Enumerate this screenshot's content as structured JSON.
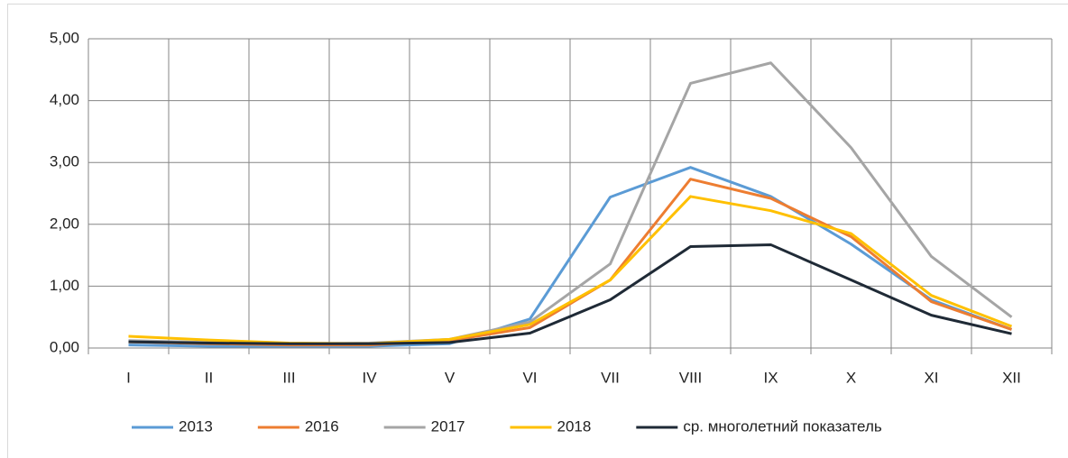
{
  "chart_data": {
    "type": "line",
    "categories": [
      "I",
      "II",
      "III",
      "IV",
      "V",
      "VI",
      "VII",
      "VIII",
      "IX",
      "X",
      "XI",
      "XII"
    ],
    "series": [
      {
        "name": "2013",
        "color": "#5b9bd5",
        "values": [
          0.05,
          0.03,
          0.03,
          0.03,
          0.07,
          0.47,
          2.44,
          2.92,
          2.45,
          1.68,
          0.78,
          0.3
        ]
      },
      {
        "name": "2016",
        "color": "#ed7d31",
        "values": [
          0.1,
          0.07,
          0.05,
          0.05,
          0.12,
          0.33,
          1.1,
          2.73,
          2.42,
          1.8,
          0.75,
          0.3
        ]
      },
      {
        "name": "2017",
        "color": "#a5a5a5",
        "values": [
          0.12,
          0.09,
          0.07,
          0.08,
          0.14,
          0.42,
          1.36,
          4.28,
          4.61,
          3.24,
          1.48,
          0.5
        ]
      },
      {
        "name": "2018",
        "color": "#ffc000",
        "values": [
          0.19,
          0.13,
          0.08,
          0.07,
          0.14,
          0.38,
          1.1,
          2.45,
          2.22,
          1.85,
          0.85,
          0.35
        ]
      },
      {
        "name": "ср. многолетний показатель",
        "color": "#1f2a36",
        "values": [
          0.1,
          0.08,
          0.07,
          0.07,
          0.09,
          0.24,
          0.78,
          1.64,
          1.67,
          1.1,
          0.53,
          0.23
        ]
      }
    ],
    "ylim": [
      0,
      5
    ],
    "yticks": [
      {
        "value": 0,
        "label": "0,00"
      },
      {
        "value": 1,
        "label": "1,00"
      },
      {
        "value": 2,
        "label": "2,00"
      },
      {
        "value": 3,
        "label": "3,00"
      },
      {
        "value": 4,
        "label": "4,00"
      },
      {
        "value": 5,
        "label": "5,00"
      }
    ],
    "grid": true,
    "legend": "bottom"
  }
}
